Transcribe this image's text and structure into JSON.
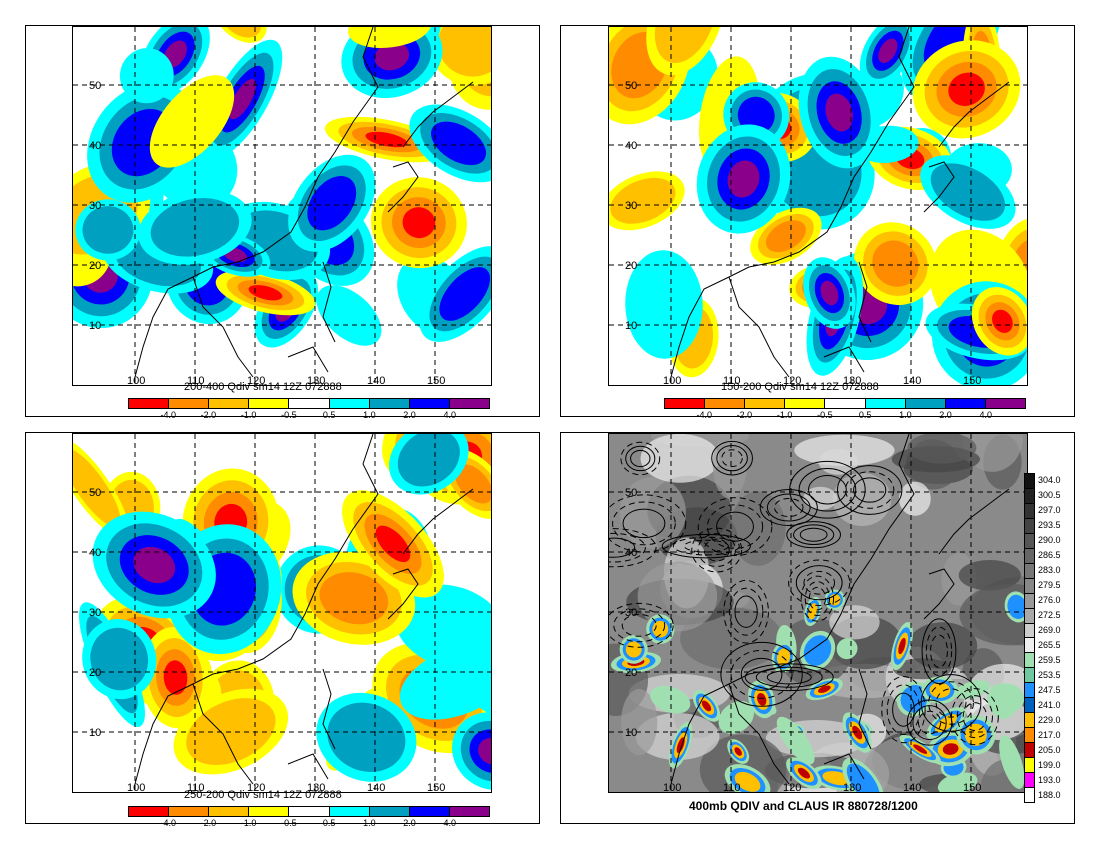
{
  "panels": [
    {
      "title": "200-400 Qdiv sm14 12Z 072888"
    },
    {
      "title": "150-200 Qdiv sm14 12Z 072888"
    },
    {
      "title": "250-200 Qdiv sm14 12Z 072888"
    },
    {
      "title": "400mb QDIV and CLAUS IR 880728/1200"
    }
  ],
  "lat_labels": [
    "50",
    "40",
    "30",
    "20",
    "10"
  ],
  "lon_labels": [
    "100",
    "110",
    "120",
    "130",
    "140",
    "150"
  ],
  "qdiv_colorbar": {
    "colors": [
      "#ff0000",
      "#ff8c00",
      "#ffc000",
      "#ffff00",
      "#ffffff",
      "#00ffff",
      "#00a0c0",
      "#0000ff",
      "#8b008b"
    ],
    "labels": [
      "-4.0",
      "-2.0",
      "-1.0",
      "-0.5",
      "0.5",
      "1.0",
      "2.0",
      "4.0"
    ]
  },
  "ir_colorbar": {
    "labels": [
      "304.0",
      "300.5",
      "297.0",
      "293.5",
      "290.0",
      "286.5",
      "283.0",
      "279.5",
      "276.0",
      "272.5",
      "269.0",
      "265.5",
      "259.5",
      "253.5",
      "247.5",
      "241.0",
      "229.0",
      "217.0",
      "205.0",
      "199.0",
      "193.0",
      "188.0"
    ],
    "colors": [
      "#111111",
      "#222222",
      "#333333",
      "#444444",
      "#555555",
      "#666666",
      "#777777",
      "#888888",
      "#999999",
      "#aaaaaa",
      "#cccccc",
      "#eeeeee",
      "#a0e0b0",
      "#70c8a0",
      "#1e90ff",
      "#0060c0",
      "#ffc000",
      "#ff8c00",
      "#c00000",
      "#ffff00",
      "#ff00ff",
      "#ffffff"
    ]
  },
  "palette": {
    "red": "#ff0000",
    "orange": "#ff8c00",
    "gold": "#ffc000",
    "yellow": "#ffff00",
    "cyan": "#00ffff",
    "teal": "#00a0c0",
    "blue": "#0000ff",
    "purple": "#8b008b"
  }
}
